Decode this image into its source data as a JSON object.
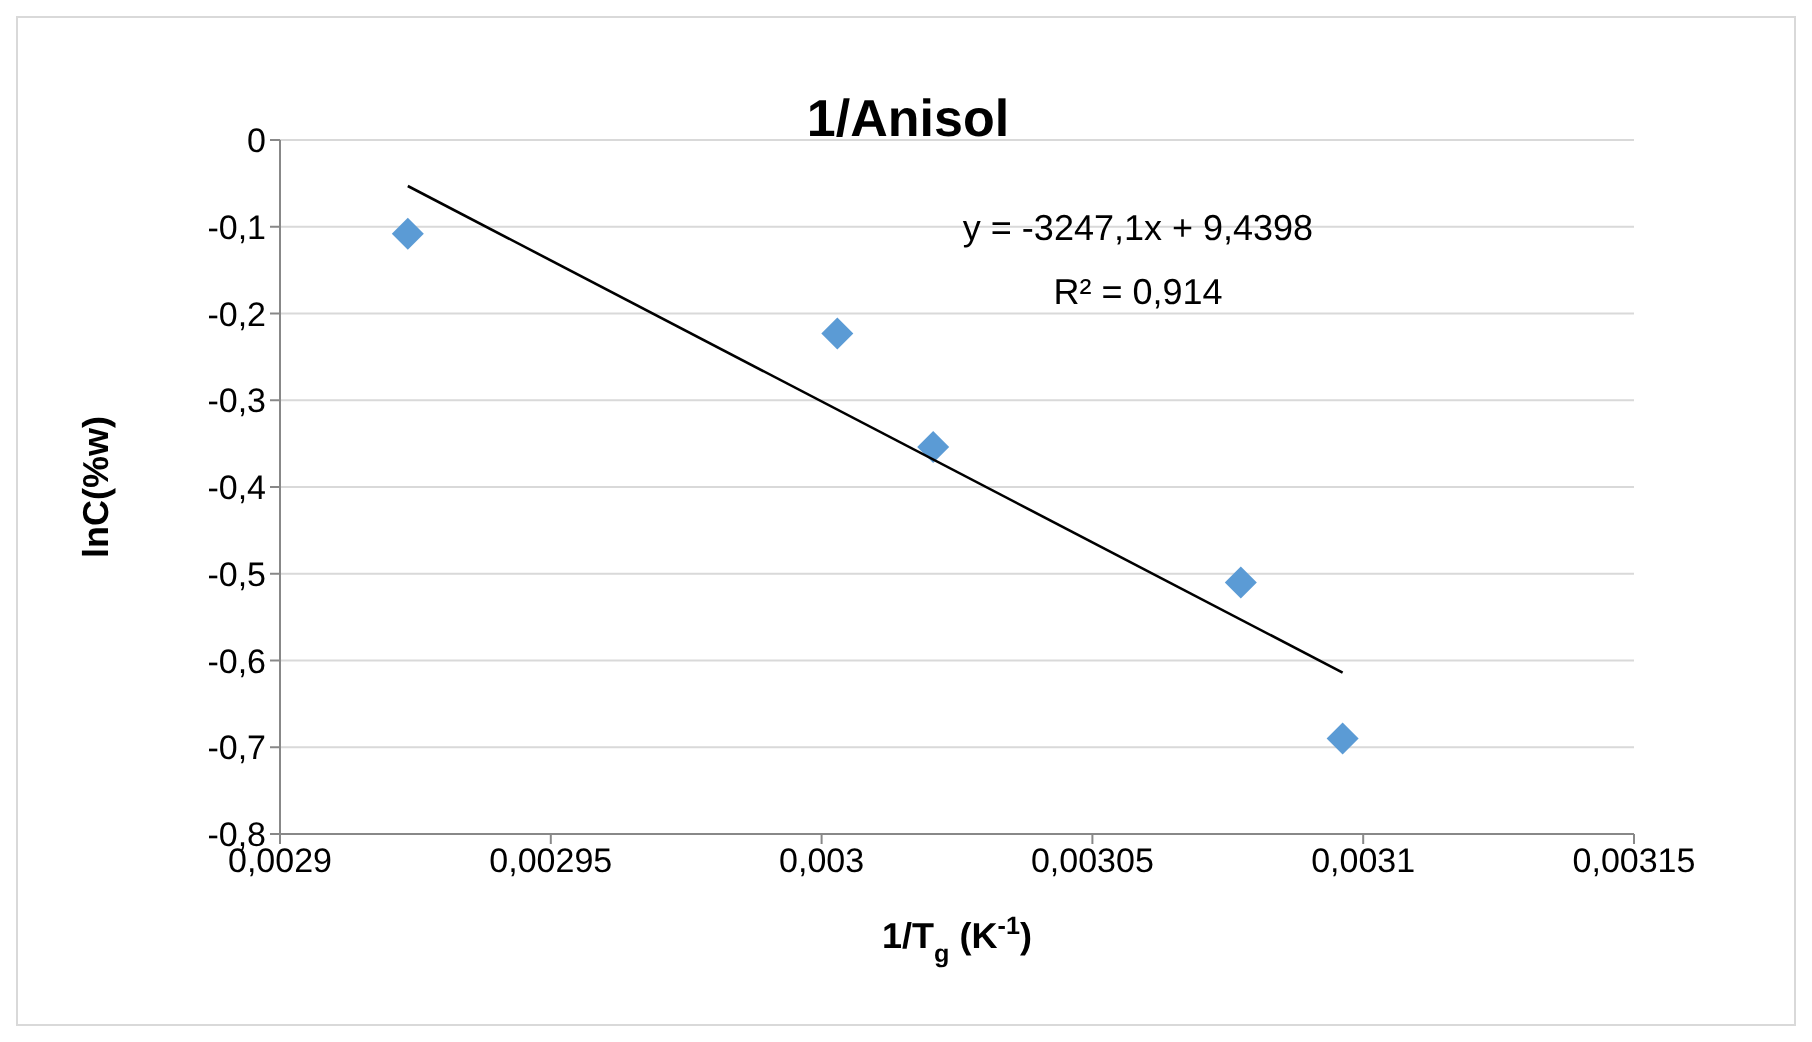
{
  "chart_data": {
    "type": "scatter",
    "title": "1/Anisol",
    "xlabel": "1/T$_{g}$ (K$^{-1}$)",
    "ylabel": "lnC(%w)",
    "annotations": [
      "y = -3247,1x + 9,4398",
      "R² = 0,914"
    ],
    "xlim": [
      0.0029,
      0.00315
    ],
    "xticks": [
      {
        "value": 0.0029,
        "label": "0,0029"
      },
      {
        "value": 0.00295,
        "label": "0,00295"
      },
      {
        "value": 0.003,
        "label": "0,003"
      },
      {
        "value": 0.00305,
        "label": "0,00305"
      },
      {
        "value": 0.0031,
        "label": "0,0031"
      },
      {
        "value": 0.00315,
        "label": "0,00315"
      }
    ],
    "ylim": [
      -0.8,
      0
    ],
    "yticks": [
      {
        "value": -0.8,
        "label": "-0,8"
      },
      {
        "value": -0.7,
        "label": "-0,7"
      },
      {
        "value": -0.6,
        "label": "-0,6"
      },
      {
        "value": -0.5,
        "label": "-0,5"
      },
      {
        "value": -0.4,
        "label": "-0,4"
      },
      {
        "value": -0.3,
        "label": "-0,3"
      },
      {
        "value": -0.2,
        "label": "-0,2"
      },
      {
        "value": -0.1,
        "label": "-0,1"
      },
      {
        "value": 0,
        "label": "0"
      }
    ],
    "grid": "y",
    "legend": false,
    "series": [
      {
        "type": "scatter",
        "marker": "diamond",
        "color": "#5b9bd5",
        "x": [
          0.0029236,
          0.0030029,
          0.0030206,
          0.0030774,
          0.0030962
        ],
        "values": [
          -0.108,
          -0.223,
          -0.354,
          -0.51,
          -0.69
        ]
      },
      {
        "type": "line",
        "marker": "none",
        "color": "#000000",
        "x": [
          0.0029236,
          0.0030962
        ],
        "values": [
          -0.053,
          -0.614
        ]
      }
    ]
  }
}
